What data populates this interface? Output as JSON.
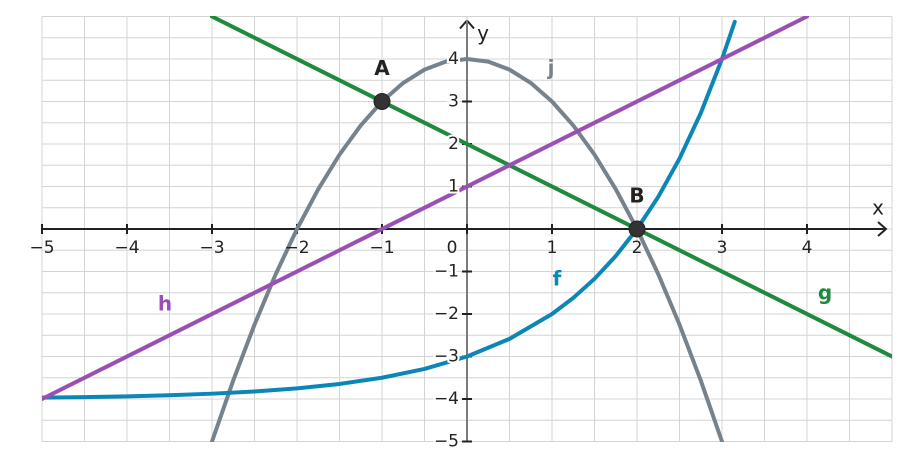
{
  "chart_data": {
    "type": "function",
    "x_label": "x",
    "y_label": "y",
    "xlim": [
      -5,
      5
    ],
    "ylim": [
      -5,
      5
    ],
    "xticks": [
      {
        "value": -5,
        "label": "−5"
      },
      {
        "value": -4,
        "label": "−4"
      },
      {
        "value": -3,
        "label": "−3"
      },
      {
        "value": -2,
        "label": "−2"
      },
      {
        "value": -1,
        "label": "−1"
      },
      0,
      1,
      2,
      3,
      4
    ],
    "yticks": [
      {
        "value": -5,
        "label": "−5"
      },
      {
        "value": -4,
        "label": "−4"
      },
      {
        "value": -3,
        "label": "−3"
      },
      {
        "value": -2,
        "label": "−2"
      },
      {
        "value": -1,
        "label": "−1"
      },
      1,
      2,
      3,
      4
    ],
    "grid": true,
    "series": [
      {
        "name": "j",
        "color": "#77838c",
        "x": [
          -3,
          -2.75,
          -2.5,
          -2.25,
          -2,
          -1.75,
          -1.5,
          -1.25,
          -1,
          -0.75,
          -0.5,
          -0.25,
          0,
          0.25,
          0.5,
          0.75,
          1,
          1.25,
          1.5,
          1.75,
          2,
          2.25,
          2.5,
          2.75,
          3
        ],
        "values": [
          -5,
          -3.5625,
          -2.25,
          -1.0625,
          0,
          0.9375,
          1.75,
          2.4375,
          3,
          3.4375,
          3.75,
          3.9375,
          4,
          3.9375,
          3.75,
          3.4375,
          3,
          2.4375,
          1.75,
          0.9375,
          0,
          -1.0625,
          -2.25,
          -3.5625,
          -5
        ]
      },
      {
        "name": "f",
        "color": "#0b86b5",
        "x": [
          -5,
          -4.5,
          -4,
          -3.5,
          -3,
          -2.5,
          -2,
          -1.5,
          -1,
          -0.5,
          0,
          0.5,
          1,
          1.25,
          1.5,
          1.75,
          2,
          2.25,
          2.5,
          2.75,
          3,
          3.15
        ],
        "values": [
          -3.969,
          -3.956,
          -3.938,
          -3.912,
          -3.875,
          -3.823,
          -3.75,
          -3.646,
          -3.5,
          -3.293,
          -3,
          -2.586,
          -2,
          -1.622,
          -1.172,
          -0.636,
          0,
          0.757,
          1.657,
          2.727,
          4,
          4.876
        ]
      },
      {
        "name": "g",
        "color": "#1f8a3d",
        "x": [
          -3,
          5
        ],
        "values": [
          5,
          -3
        ]
      },
      {
        "name": "h",
        "color": "#9a4fb4",
        "x": [
          -5,
          4
        ],
        "values": [
          -4,
          5
        ]
      }
    ],
    "points": [
      {
        "label": "A",
        "x": -1,
        "y": 3
      },
      {
        "label": "B",
        "x": 2,
        "y": 0
      }
    ]
  }
}
